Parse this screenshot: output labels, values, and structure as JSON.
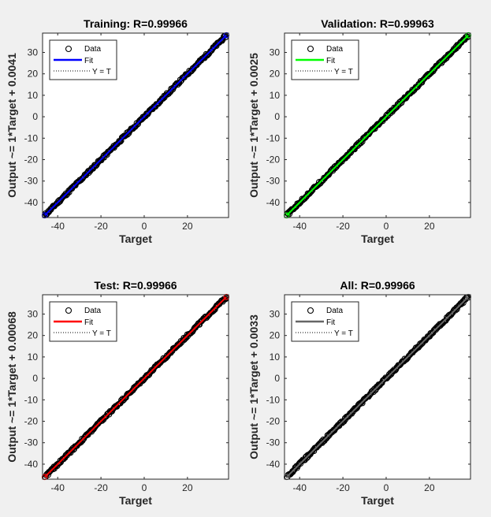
{
  "chart_data": [
    {
      "type": "scatter",
      "title": "Training: R=0.99966",
      "xlabel": "Target",
      "ylabel": "Output ~= 1*Target + 0.0041",
      "xlim": [
        -47,
        39
      ],
      "ylim": [
        -47,
        39
      ],
      "xticks": [
        -40,
        -20,
        0,
        20
      ],
      "yticks": [
        -40,
        -30,
        -20,
        -10,
        0,
        10,
        20,
        30
      ],
      "fit": {
        "slope": 1,
        "intercept": 0.0041
      },
      "data_range": [
        -46,
        38
      ],
      "fit_color": "#0000ff",
      "legend": {
        "position": "top-left",
        "entries": [
          "Data",
          "Fit",
          "Y = T"
        ]
      },
      "grid": false
    },
    {
      "type": "scatter",
      "title": "Validation: R=0.99963",
      "xlabel": "Target",
      "ylabel": "Output ~= 1*Target + 0.0025",
      "xlim": [
        -47,
        39
      ],
      "ylim": [
        -47,
        39
      ],
      "xticks": [
        -40,
        -20,
        0,
        20
      ],
      "yticks": [
        -40,
        -30,
        -20,
        -10,
        0,
        10,
        20,
        30
      ],
      "fit": {
        "slope": 1,
        "intercept": 0.0025
      },
      "data_range": [
        -46,
        38
      ],
      "fit_color": "#00ff00",
      "legend": {
        "position": "top-left",
        "entries": [
          "Data",
          "Fit",
          "Y = T"
        ]
      },
      "grid": false
    },
    {
      "type": "scatter",
      "title": "Test: R=0.99966",
      "xlabel": "Target",
      "ylabel": "Output ~= 1*Target + 0.00068",
      "xlim": [
        -47,
        39
      ],
      "ylim": [
        -47,
        39
      ],
      "xticks": [
        -40,
        -20,
        0,
        20
      ],
      "yticks": [
        -40,
        -30,
        -20,
        -10,
        0,
        10,
        20,
        30
      ],
      "fit": {
        "slope": 1,
        "intercept": 0.00068
      },
      "data_range": [
        -46,
        38
      ],
      "fit_color": "#ff0000",
      "legend": {
        "position": "top-left",
        "entries": [
          "Data",
          "Fit",
          "Y = T"
        ]
      },
      "grid": false
    },
    {
      "type": "scatter",
      "title": "All: R=0.99966",
      "xlabel": "Target",
      "ylabel": "Output ~= 1*Target + 0.0033",
      "xlim": [
        -47,
        39
      ],
      "ylim": [
        -47,
        39
      ],
      "xticks": [
        -40,
        -20,
        0,
        20
      ],
      "yticks": [
        -40,
        -30,
        -20,
        -10,
        0,
        10,
        20,
        30
      ],
      "fit": {
        "slope": 1,
        "intercept": 0.0033
      },
      "data_range": [
        -46,
        38
      ],
      "fit_color": "#666666",
      "legend": {
        "position": "top-left",
        "entries": [
          "Data",
          "Fit",
          "Y = T"
        ]
      },
      "grid": false
    }
  ]
}
